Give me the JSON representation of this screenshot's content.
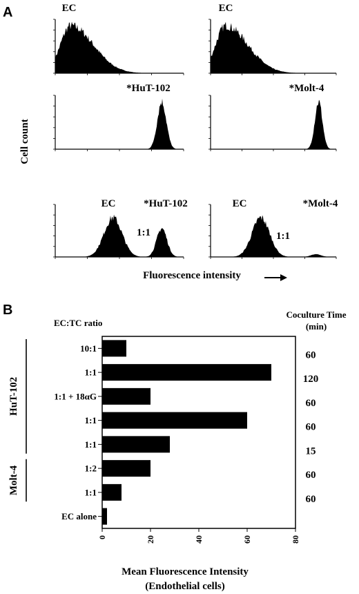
{
  "panel_a": {
    "letter": "A",
    "y_label": "Cell count",
    "x_label": "Fluorescence intensity",
    "histograms": [
      {
        "labels": [
          "EC"
        ],
        "peaks": [
          {
            "center": 0.12,
            "width": 0.08,
            "height": 1.0
          }
        ]
      },
      {
        "labels": [
          "EC"
        ],
        "peaks": [
          {
            "center": 0.12,
            "width": 0.08,
            "height": 1.0
          }
        ]
      },
      {
        "labels": [
          "*HuT-102"
        ],
        "peaks": [
          {
            "center": 0.83,
            "width": 0.035,
            "height": 1.0
          }
        ]
      },
      {
        "labels": [
          "*Molt-4"
        ],
        "peaks": [
          {
            "center": 0.86,
            "width": 0.03,
            "height": 1.0
          }
        ]
      },
      {
        "labels": [
          "EC",
          "*HuT-102",
          "1:1"
        ],
        "peaks": [
          {
            "center": 0.45,
            "width": 0.07,
            "height": 0.85
          },
          {
            "center": 0.83,
            "width": 0.04,
            "height": 0.62
          }
        ]
      },
      {
        "labels": [
          "EC",
          "*Molt-4",
          "1:1"
        ],
        "peaks": [
          {
            "center": 0.4,
            "width": 0.07,
            "height": 0.85
          },
          {
            "center": 0.84,
            "width": 0.04,
            "height": 0.06
          }
        ]
      }
    ]
  },
  "panel_b": {
    "letter": "B",
    "ratio_header": "EC:TC ratio",
    "time_header_line1": "Coculture Time",
    "time_header_line2": "(min)",
    "groups": [
      {
        "label": "HuT-102",
        "rows": [
          0,
          4
        ]
      },
      {
        "label": "Molt-4",
        "rows": [
          5,
          6
        ]
      }
    ],
    "xlabel_line1": "Mean Fluorescence Intensity",
    "xlabel_line2": "(Endothelial cells)"
  },
  "chart_data": {
    "type": "bar",
    "orientation": "horizontal",
    "categories": [
      "10:1",
      "1:1",
      "1:1 + 18αG",
      "1:1",
      "1:1",
      "1:2",
      "1:1",
      "EC alone"
    ],
    "values": [
      10,
      70,
      20,
      60,
      28,
      20,
      8,
      2
    ],
    "coculture_time": [
      "60",
      "120",
      "60",
      "60",
      "15",
      "60",
      "60",
      ""
    ],
    "xlim": [
      0,
      80
    ],
    "xticks": [
      "0",
      "20",
      "40",
      "60",
      "80"
    ],
    "xlabel": "Mean Fluorescence Intensity (Endothelial cells)",
    "ylabel": "EC:TC ratio",
    "grid": false
  }
}
